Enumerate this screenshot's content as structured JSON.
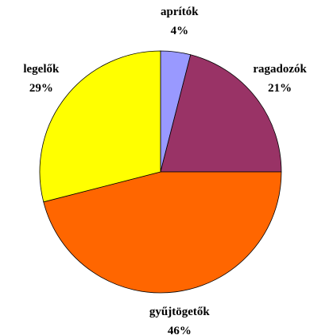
{
  "chart_data": {
    "type": "pie",
    "categories": [
      "aprítók",
      "ragadozók",
      "gyűjtögetők",
      "legelők"
    ],
    "values": [
      4,
      21,
      46,
      29
    ],
    "value_labels": [
      "4%",
      "21%",
      "46%",
      "29%"
    ],
    "colors": [
      "#9999ff",
      "#993366",
      "#ff6600",
      "#ffff00"
    ]
  }
}
